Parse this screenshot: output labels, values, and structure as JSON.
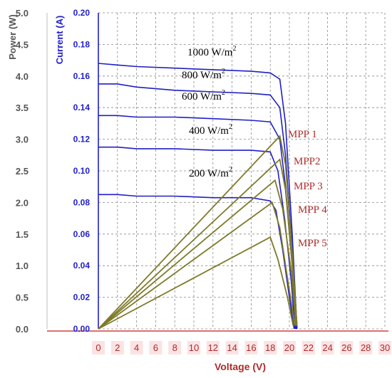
{
  "chart_data": {
    "type": "line",
    "xlabel": "Voltage (V)",
    "ylabel_left": "Power (W)",
    "ylabel_right": "Current (A)",
    "x_ticks": [
      "0",
      "2",
      "4",
      "6",
      "8",
      "10",
      "12",
      "14",
      "16",
      "18",
      "20",
      "22",
      "24",
      "26",
      "28",
      "30"
    ],
    "power_ticks": [
      "5.0",
      "4.5",
      "4.0",
      "3.5",
      "3.0",
      "2.5",
      "2.0",
      "1.5",
      "1.0",
      "0.5",
      "0.0"
    ],
    "current_ticks": [
      "0.20",
      "0.18",
      "0.16",
      "0.14",
      "0.12",
      "0.10",
      "0.08",
      "0.06",
      "0.04",
      "0.02",
      "0.00"
    ],
    "xlim": [
      0,
      30
    ],
    "power_lim": [
      0,
      5
    ],
    "current_lim": [
      0,
      0.2
    ],
    "grid": true,
    "colors": {
      "current": "#1f1fc8",
      "power": "#7f7a2a",
      "axis": "#c0392b"
    },
    "current_series": [
      {
        "irradiance": "1000 W/m²",
        "points": [
          [
            0,
            0.168
          ],
          [
            2,
            0.167
          ],
          [
            4,
            0.166
          ],
          [
            8,
            0.165
          ],
          [
            12,
            0.164
          ],
          [
            16,
            0.163
          ],
          [
            18,
            0.162
          ],
          [
            19,
            0.158
          ],
          [
            19.6,
            0.13
          ],
          [
            20.3,
            0.06
          ],
          [
            20.8,
            0.0
          ]
        ]
      },
      {
        "irradiance": "800 W/m²",
        "points": [
          [
            0,
            0.155
          ],
          [
            2,
            0.155
          ],
          [
            4,
            0.153
          ],
          [
            8,
            0.151
          ],
          [
            12,
            0.15
          ],
          [
            16,
            0.149
          ],
          [
            18,
            0.148
          ],
          [
            19,
            0.14
          ],
          [
            19.6,
            0.11
          ],
          [
            20.3,
            0.05
          ],
          [
            20.8,
            0.0
          ]
        ]
      },
      {
        "irradiance": "600 W/m²",
        "points": [
          [
            0,
            0.135
          ],
          [
            2,
            0.135
          ],
          [
            4,
            0.134
          ],
          [
            8,
            0.134
          ],
          [
            12,
            0.133
          ],
          [
            16,
            0.132
          ],
          [
            18,
            0.131
          ],
          [
            19,
            0.12
          ],
          [
            19.6,
            0.09
          ],
          [
            20.3,
            0.04
          ],
          [
            20.7,
            0.0
          ]
        ]
      },
      {
        "irradiance": "400 W/m²",
        "points": [
          [
            0,
            0.115
          ],
          [
            2,
            0.115
          ],
          [
            4,
            0.114
          ],
          [
            8,
            0.114
          ],
          [
            12,
            0.113
          ],
          [
            16,
            0.113
          ],
          [
            18,
            0.112
          ],
          [
            18.8,
            0.1
          ],
          [
            19.5,
            0.07
          ],
          [
            20.2,
            0.03
          ],
          [
            20.6,
            0.0
          ]
        ]
      },
      {
        "irradiance": "200 W/m²",
        "points": [
          [
            0,
            0.085
          ],
          [
            2,
            0.085
          ],
          [
            4,
            0.084
          ],
          [
            8,
            0.084
          ],
          [
            12,
            0.083
          ],
          [
            16,
            0.083
          ],
          [
            18,
            0.081
          ],
          [
            18.6,
            0.075
          ],
          [
            19.3,
            0.05
          ],
          [
            20.0,
            0.02
          ],
          [
            20.5,
            0.0
          ]
        ]
      }
    ],
    "power_series": [
      {
        "mpp": "MPP 1",
        "points": [
          [
            0,
            0
          ],
          [
            19,
            3.05
          ],
          [
            19.6,
            2.6
          ],
          [
            20.3,
            1.2
          ],
          [
            20.8,
            0.05
          ]
        ]
      },
      {
        "mpp": "MPP2",
        "points": [
          [
            0,
            0
          ],
          [
            19,
            2.68
          ],
          [
            19.6,
            2.2
          ],
          [
            20.3,
            1.0
          ],
          [
            20.8,
            0.05
          ]
        ]
      },
      {
        "mpp": "MPP 3",
        "points": [
          [
            0,
            0
          ],
          [
            18.5,
            2.35
          ],
          [
            19.3,
            1.9
          ],
          [
            20.2,
            0.9
          ],
          [
            20.7,
            0.05
          ]
        ]
      },
      {
        "mpp": "MPP 4",
        "points": [
          [
            0,
            0
          ],
          [
            18.2,
            2.0
          ],
          [
            19.0,
            1.6
          ],
          [
            19.9,
            0.7
          ],
          [
            20.6,
            0.05
          ]
        ]
      },
      {
        "mpp": "MPP 5",
        "points": [
          [
            0,
            0
          ],
          [
            18,
            1.45
          ],
          [
            18.8,
            1.1
          ],
          [
            19.8,
            0.5
          ],
          [
            20.4,
            0.05
          ]
        ]
      }
    ],
    "irradiance_labels": [
      "1000 W/m",
      "800 W/m",
      "600 W/m",
      "400 W/m",
      "200 W/m"
    ],
    "irradiance_superscript": "2",
    "mpp_labels": [
      "MPP 1",
      "MPP2",
      "MPP 3",
      "MPP 4",
      "MPP 5"
    ]
  }
}
